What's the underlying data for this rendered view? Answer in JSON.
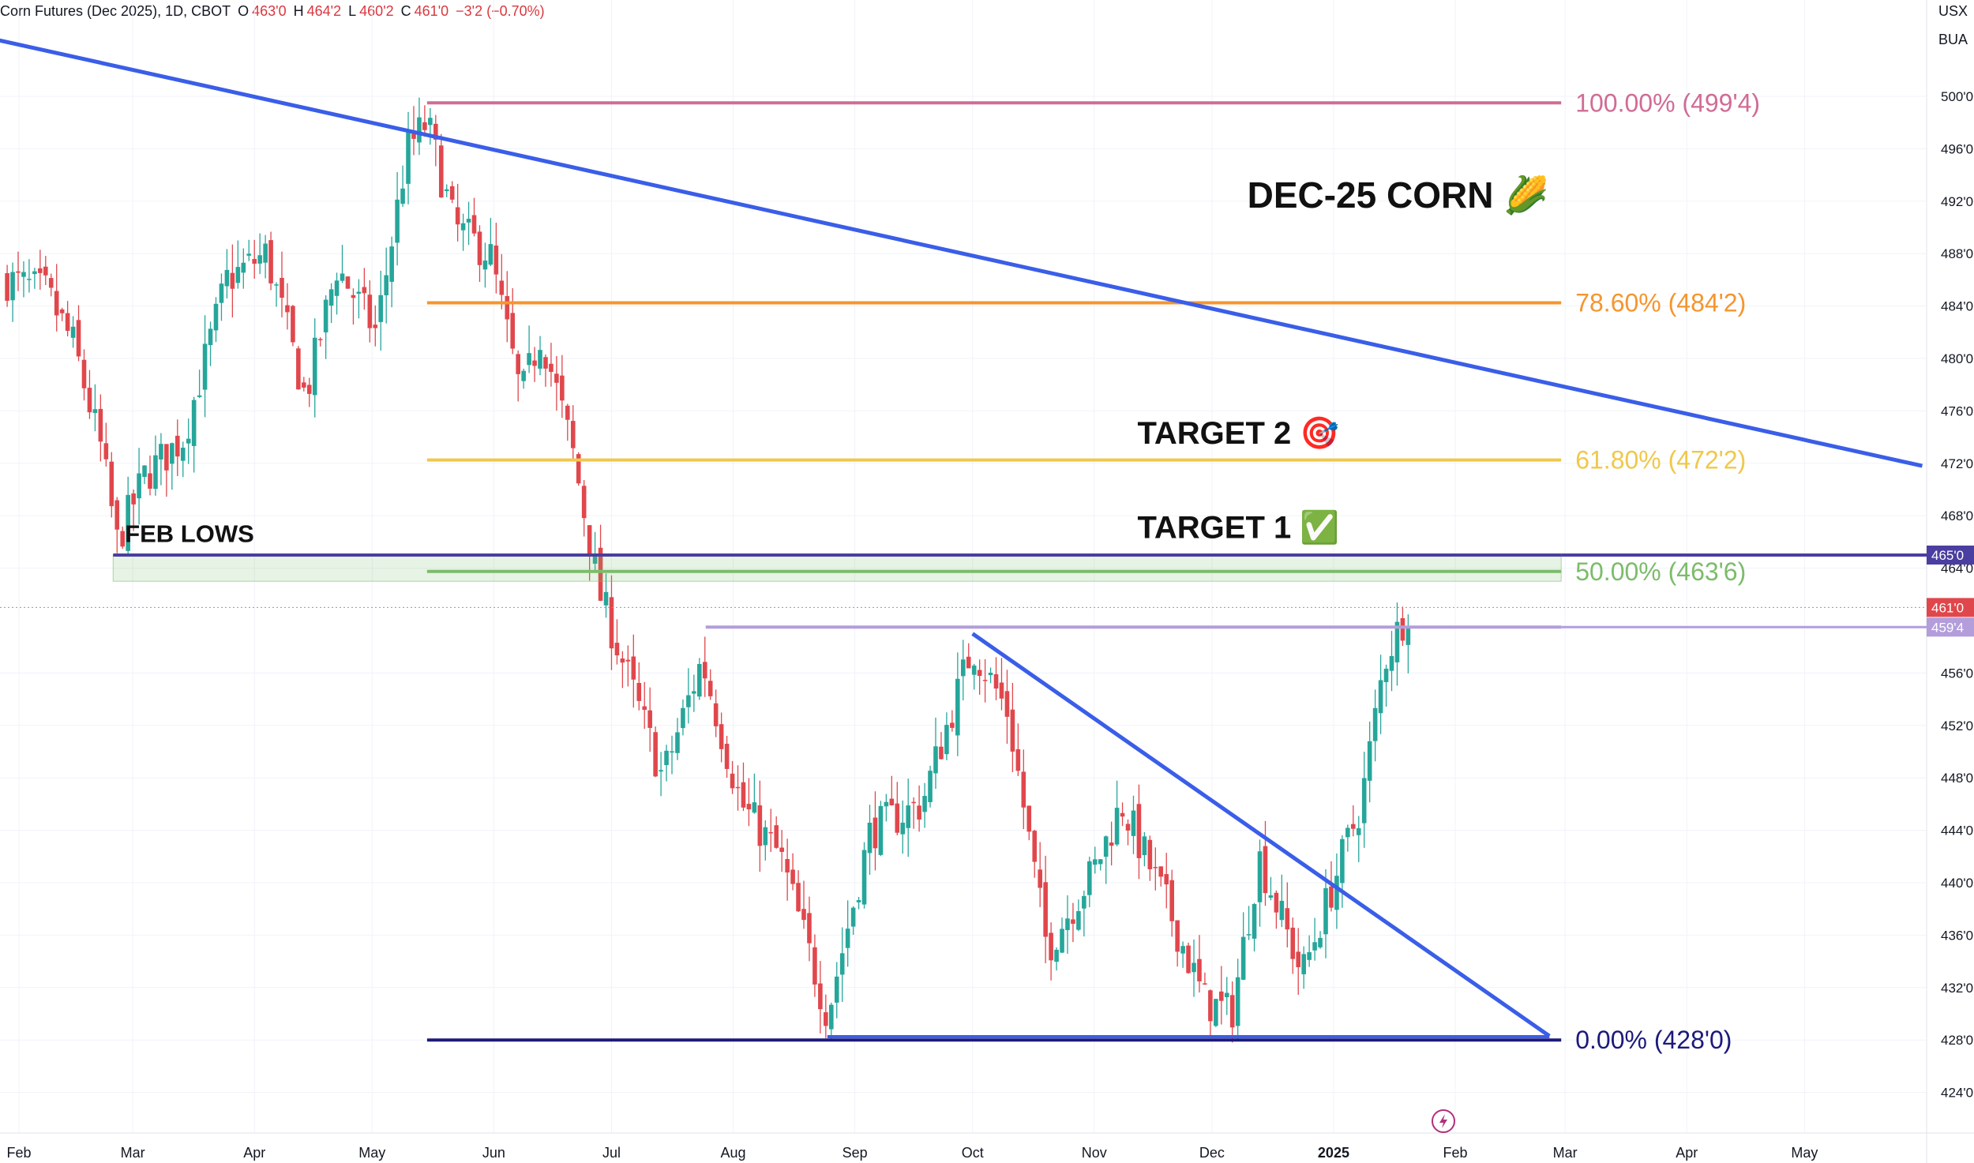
{
  "header": {
    "symbol": "Corn Futures (Dec 2025), 1D, CBOT",
    "o_label": "O",
    "o_value": "463'0",
    "h_label": "H",
    "h_value": "464'2",
    "l_label": "L",
    "l_value": "460'2",
    "c_label": "C",
    "c_value": "461'0",
    "change": "−3'2 (−0.70%)"
  },
  "units": [
    "USX",
    "BUA"
  ],
  "colors": {
    "up": "#26a69a",
    "down": "#e0474c",
    "trend": "#3a5ee8",
    "fib100": "#d06c95",
    "fib786": "#f5952e",
    "fib618": "#f0c84a",
    "fib50": "#7cbc6a",
    "fib0": "#1c1a7a",
    "feb_lows": "#4a3ea0",
    "resistance": "#b39ddb",
    "last_price": "#e0474c"
  },
  "chart_data": {
    "type": "candlestick",
    "title": "DEC-25 CORN 🌽",
    "y_range": [
      421,
      505
    ],
    "y_ticks": [
      "500'0",
      "496'0",
      "492'0",
      "488'0",
      "484'0",
      "480'0",
      "476'0",
      "472'0",
      "468'0",
      "464'0",
      "456'0",
      "452'0",
      "448'0",
      "444'0",
      "440'0",
      "436'0",
      "432'0",
      "428'0",
      "424'0"
    ],
    "y_tick_values": [
      500,
      496,
      492,
      488,
      484,
      480,
      476,
      472,
      468,
      464,
      456,
      452,
      448,
      444,
      440,
      436,
      432,
      428,
      424
    ],
    "x_ticks": [
      "Feb",
      "Mar",
      "Apr",
      "May",
      "Jun",
      "Jul",
      "Aug",
      "Sep",
      "Oct",
      "Nov",
      "Dec",
      "2025",
      "Feb",
      "Mar",
      "Apr",
      "May"
    ],
    "x_tick_dates": [
      "2024-02-01",
      "2024-03-01",
      "2024-04-01",
      "2024-05-01",
      "2024-06-01",
      "2024-07-01",
      "2024-08-01",
      "2024-09-01",
      "2024-10-01",
      "2024-11-01",
      "2024-12-01",
      "2025-01-01",
      "2025-02-01",
      "2025-03-01",
      "2025-04-01",
      "2025-05-01"
    ],
    "price_labels": [
      {
        "text": "465'0",
        "value": 465.0,
        "color": "#4a3ea0"
      },
      {
        "text": "461'0",
        "value": 461.0,
        "color": "#e0474c"
      },
      {
        "text": "459'4",
        "value": 459.5,
        "color": "#b39ddb"
      }
    ],
    "fib_levels": [
      {
        "label": "100.00% (499'4)",
        "value": 499.5,
        "color": "#d06c95"
      },
      {
        "label": "78.60% (484'2)",
        "value": 484.25,
        "color": "#f5952e"
      },
      {
        "label": "61.80% (472'2)",
        "value": 472.25,
        "color": "#f0c84a"
      },
      {
        "label": "50.00% (463'6)",
        "value": 463.75,
        "color": "#7cbc6a"
      },
      {
        "label": "0.00% (428'0)",
        "value": 428.0,
        "color": "#1c1a7a"
      }
    ],
    "fib_start": "2024-05-15",
    "fib_end": "2025-02-28",
    "horizontal_lines": [
      {
        "name": "feb-lows",
        "value": 465.0,
        "from": "2024-02-25",
        "to": "2025-02-28",
        "color": "#4a3ea0"
      },
      {
        "name": "resistance",
        "value": 459.5,
        "from": "2024-07-25",
        "to": "2025-02-28",
        "color": "#b39ddb"
      },
      {
        "name": "bottom-support",
        "value": 428.25,
        "from": "2024-08-25",
        "to": "2025-02-25",
        "color": "#3a5ee8"
      }
    ],
    "trendlines": [
      {
        "name": "long-downtrend",
        "from": {
          "date": "2024-01-13",
          "value": 505.2
        },
        "to": {
          "date": "2025-05-31",
          "value": 471.8
        }
      },
      {
        "name": "short-downtrend",
        "from": {
          "date": "2024-10-01",
          "value": 459.0
        },
        "to": {
          "date": "2025-02-25",
          "value": 428.3
        }
      }
    ],
    "annotations": [
      {
        "text": "FEB LOWS",
        "date": "2024-02-28",
        "value": 466.0
      },
      {
        "text": "TARGET 2 🎯",
        "date": "2024-11-12",
        "value": 473.5
      },
      {
        "text": "TARGET 1 ✅",
        "date": "2024-11-12",
        "value": 466.3
      },
      {
        "text": "DEC-25 CORN 🌽",
        "date": "2024-12-10",
        "value": 491.5
      }
    ],
    "series": [
      {
        "name": "candles",
        "start": "2024-01-29",
        "end": "2025-01-20",
        "closes": [
          {
            "date": "2024-01-29",
            "value": 486
          },
          {
            "date": "2024-02-08",
            "value": 485
          },
          {
            "date": "2024-02-15",
            "value": 481
          },
          {
            "date": "2024-02-22",
            "value": 473
          },
          {
            "date": "2024-02-26",
            "value": 466
          },
          {
            "date": "2024-03-04",
            "value": 471
          },
          {
            "date": "2024-03-14",
            "value": 474
          },
          {
            "date": "2024-03-25",
            "value": 486
          },
          {
            "date": "2024-04-04",
            "value": 488
          },
          {
            "date": "2024-04-14",
            "value": 477
          },
          {
            "date": "2024-04-22",
            "value": 487
          },
          {
            "date": "2024-05-02",
            "value": 482
          },
          {
            "date": "2024-05-10",
            "value": 496
          },
          {
            "date": "2024-05-15",
            "value": 498
          },
          {
            "date": "2024-05-22",
            "value": 490
          },
          {
            "date": "2024-05-31",
            "value": 488
          },
          {
            "date": "2024-06-08",
            "value": 477
          },
          {
            "date": "2024-06-13",
            "value": 482
          },
          {
            "date": "2024-06-21",
            "value": 473
          },
          {
            "date": "2024-06-28",
            "value": 462
          },
          {
            "date": "2024-07-06",
            "value": 455
          },
          {
            "date": "2024-07-14",
            "value": 448
          },
          {
            "date": "2024-07-24",
            "value": 457
          },
          {
            "date": "2024-08-03",
            "value": 446
          },
          {
            "date": "2024-08-13",
            "value": 442
          },
          {
            "date": "2024-08-25",
            "value": 430
          },
          {
            "date": "2024-09-05",
            "value": 444
          },
          {
            "date": "2024-09-18",
            "value": 446
          },
          {
            "date": "2024-10-01",
            "value": 458
          },
          {
            "date": "2024-10-10",
            "value": 453
          },
          {
            "date": "2024-10-20",
            "value": 435
          },
          {
            "date": "2024-11-01",
            "value": 441
          },
          {
            "date": "2024-11-08",
            "value": 446
          },
          {
            "date": "2024-11-20",
            "value": 438
          },
          {
            "date": "2024-11-29",
            "value": 431
          },
          {
            "date": "2024-12-06",
            "value": 430
          },
          {
            "date": "2024-12-13",
            "value": 442
          },
          {
            "date": "2024-12-24",
            "value": 433
          },
          {
            "date": "2025-01-01",
            "value": 440
          },
          {
            "date": "2025-01-08",
            "value": 446
          },
          {
            "date": "2025-01-14",
            "value": 457
          },
          {
            "date": "2025-01-20",
            "value": 461
          }
        ]
      }
    ]
  }
}
